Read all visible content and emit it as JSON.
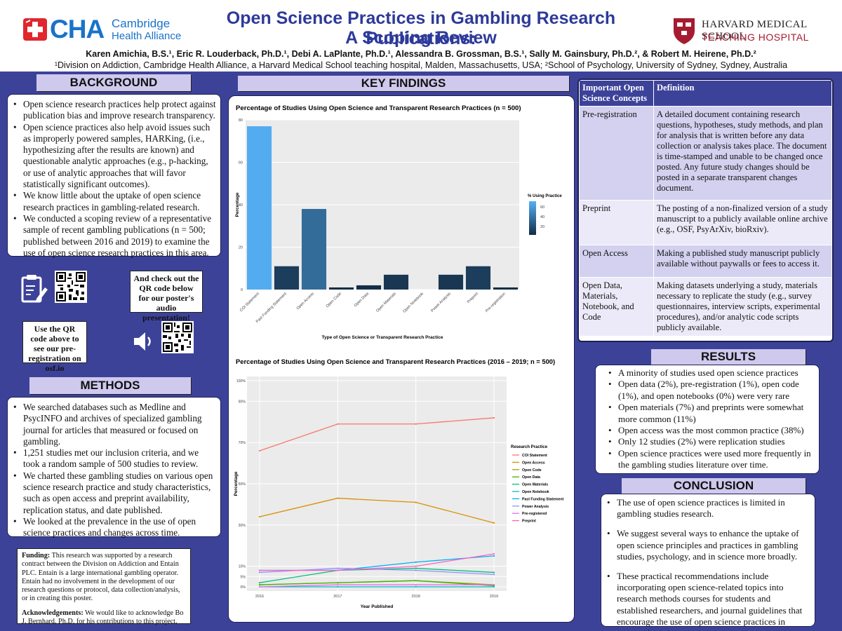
{
  "header": {
    "left_logo": {
      "name": "CHA",
      "line1": "Cambridge",
      "line2": "Health Alliance"
    },
    "title_line1": "Open Science Practices in Gambling Research Publications:",
    "title_line2": "A Scoping Review",
    "right_logo": {
      "line1": "HARVARD MEDICAL SCHOOL",
      "line2": "TEACHING HOSPITAL"
    },
    "authors": "Karen Amichia, B.S.¹, Eric R. Louderback, Ph.D.¹, Debi A. LaPlante, Ph.D.¹, Alessandra B. Grossman, B.S.¹, Sally M. Gainsbury, Ph.D.², & Robert M. Heirene, Ph.D.²",
    "affiliations": "¹Division on Addiction, Cambridge Health Alliance, a Harvard Medical School teaching hospital, Malden, Massachusetts, USA; ²School of Psychology, University of Sydney, Sydney, Australia"
  },
  "background": {
    "heading": "BACKGROUND",
    "bullets": [
      "Open science research practices help protect against publication bias and improve research transparency.",
      "Open science practices also help avoid issues such as improperly powered samples, HARKing, (i.e., hypothesizing after the results are known) and questionable analytic approaches (e.g., p-hacking, or use of analytic approaches that will favor statistically significant outcomes).",
      "We know little about the uptake of open science research practices in gambling-related research.",
      "We conducted a scoping review of a representative sample of recent gambling publications (n = 500; published between 2016 and 2019) to examine the use of open science research practices in this area."
    ]
  },
  "qr_notes": {
    "audio_note": "And check out the QR code below for our poster's audio presentation!",
    "prereg_note": "Use the QR code above to see our pre-registration on osf.io"
  },
  "methods": {
    "heading": "METHODS",
    "bullets": [
      "We searched databases such as Medline and PsycINFO and archives of specialized gambling journal for articles that measured or focused on gambling.",
      "1,251 studies met our inclusion criteria, and we took a random sample of 500 studies to review.",
      "We charted these gambling studies on various open science research practice and study characteristics, such as open access and preprint availability, replication status, and date published.",
      "We looked at the prevalence in the use of open science practices and changes across time."
    ]
  },
  "funding": {
    "funding_label": "Funding:",
    "funding_text": "This research was supported by a research contract between the Division on Addiction and Entain PLC. Entain is a large international gambling operator. Entain had no involvement in the development of our research questions or protocol, data collection/analysis, or in creating this poster.",
    "ack_label": "Acknowledgements:",
    "ack_text": "We would like to acknowledge Bo J. Bernhard, Ph.D. for his contributions to this project."
  },
  "key_findings": {
    "heading": "KEY FINDINGS"
  },
  "concepts": {
    "col1": "Important Open Science Concepts",
    "col2": "Definition",
    "rows": [
      {
        "term": "Pre-registration",
        "def": "A detailed document containing research questions, hypotheses, study methods, and plan for analysis that is written before any data collection or analysis takes place. The document is time-stamped and unable to be changed once posted. Any future study changes should be posted in a separate transparent changes document."
      },
      {
        "term": "Preprint",
        "def": "The posting of a non-finalized version of a study manuscript to a publicly available online archive (e.g., OSF, PsyArXiv, bioRxiv)."
      },
      {
        "term": "Open Access",
        "def": "Making a published study manuscript publicly available without paywalls or fees to access it."
      },
      {
        "term": "Open Data, Materials, Notebook, and Code",
        "def": "Making datasets underlying a study, materials necessary to replicate the study (e.g., survey questionnaires, interview scripts, experimental procedures), and/or analytic code scripts publicly available."
      }
    ]
  },
  "results": {
    "heading": "RESULTS",
    "bullets": [
      "A minority of studies used open science practices",
      "Open data (2%), pre-registration (1%), open code (1%), and open notebooks (0%) were very rare",
      "Open materials (7%) and preprints were somewhat more common (11%)",
      "Open access was the most common practice (38%)",
      "Only 12 studies (2%) were replication studies",
      "Open science practices were used more frequently in the gambling studies literature over time."
    ]
  },
  "conclusion": {
    "heading": "CONCLUSION",
    "bullets": [
      "The use of open science practices is limited in gambling studies research.",
      "We suggest several ways to enhance the uptake of open science principles and practices in gambling studies, psychology, and in science more broadly.",
      "These practical recommendations include incorporating open science-related topics into research methods courses for students and established researchers, and journal guidelines that encourage the use of open science practices in manuscripts."
    ]
  },
  "chart_data": [
    {
      "type": "bar",
      "title": "Percentage of Studies Using Open Science and Transparent Research Practices (n = 500)",
      "categories": [
        "COI Statement",
        "Past Funding Statement",
        "Open Access",
        "Open Code",
        "Open Data",
        "Open Materials",
        "Open Notebook",
        "Power Analysis",
        "Preprint",
        "Pre-registration"
      ],
      "values": [
        77,
        11,
        38,
        1,
        2,
        7,
        0,
        7,
        11,
        1
      ],
      "xlabel": "Type of Open Science or Transparent Research Practice",
      "ylabel": "Percentage",
      "ylim": [
        0,
        80
      ],
      "yticks": [
        "0",
        "20",
        "40",
        "60",
        "80"
      ],
      "legend_title": "% Using Practice",
      "legend_ticks": [
        "60",
        "40",
        "20"
      ],
      "colors": {
        "high": "#56b1f7",
        "low": "#132b43"
      }
    },
    {
      "type": "line",
      "title": "Percentage of Studies Using Open Science and Transparent Research Practices (2016 – 2019; n = 500)",
      "x": [
        "2016",
        "2017",
        "2018",
        "2019"
      ],
      "xlabel": "Year Published",
      "ylabel": "Percentage",
      "ylim": [
        0,
        100
      ],
      "yticks": [
        "0%",
        "5%",
        "10%",
        "30%",
        "50%",
        "70%",
        "90%",
        "100%"
      ],
      "legend_title": "Research Practice",
      "series": [
        {
          "name": "COI Statement",
          "values": [
            66,
            79,
            79,
            82
          ],
          "color": "#f8766d"
        },
        {
          "name": "Open Access",
          "values": [
            34,
            43,
            41,
            31
          ],
          "color": "#d89000"
        },
        {
          "name": "Open Code",
          "values": [
            1,
            2,
            3,
            1
          ],
          "color": "#a3a500"
        },
        {
          "name": "Open Data",
          "values": [
            1,
            2,
            3,
            0.5
          ],
          "color": "#39b600"
        },
        {
          "name": "Open Materials",
          "values": [
            2,
            8,
            9,
            7
          ],
          "color": "#00bf7d"
        },
        {
          "name": "Open Notebook",
          "values": [
            0,
            0,
            0,
            0
          ],
          "color": "#00bfc4"
        },
        {
          "name": "Past Funding Statement",
          "values": [
            8,
            8,
            12,
            15
          ],
          "color": "#00b0f6"
        },
        {
          "name": "Power Analysis",
          "values": [
            7,
            9,
            8,
            6
          ],
          "color": "#9590ff"
        },
        {
          "name": "Pre-registered",
          "values": [
            0,
            1,
            1,
            1
          ],
          "color": "#e76bf3"
        },
        {
          "name": "Preprint",
          "values": [
            8,
            8,
            10,
            16
          ],
          "color": "#ff62bc"
        }
      ]
    }
  ]
}
